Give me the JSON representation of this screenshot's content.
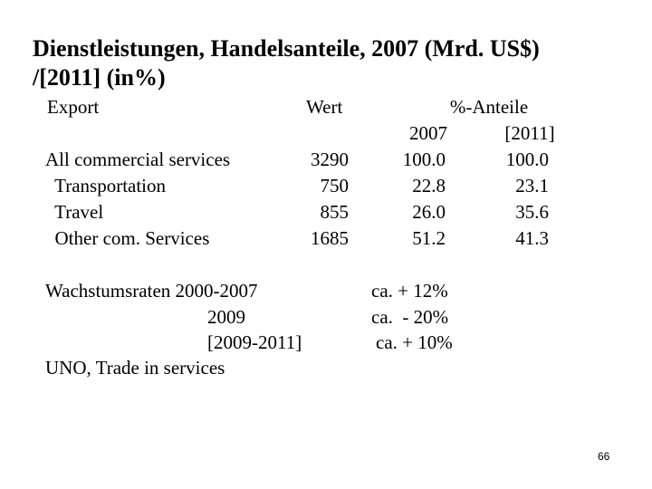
{
  "title": {
    "line1": "Dienstleistungen, Handelsanteile, 2007 (Mrd. US$)",
    "line2": "/[2011] (in%)"
  },
  "table": {
    "headers": {
      "export": "Export",
      "wert": "Wert",
      "anteile": "%-Anteile",
      "year1": "2007",
      "year2": "[2011]"
    },
    "rows": [
      {
        "label": "All commercial services",
        "wert": "3290",
        "share2007": "100.0",
        "share2011": "100.0"
      },
      {
        "label": "  Transportation",
        "wert": "750",
        "share2007": "22.8",
        "share2011": "23.1"
      },
      {
        "label": "  Travel",
        "wert": "855",
        "share2007": "26.0",
        "share2011": "35.6"
      },
      {
        "label": "  Other com. Services",
        "wert": "1685",
        "share2007": "51.2",
        "share2011": "41.3"
      }
    ]
  },
  "growth": {
    "heading": "Wachstumsraten 2000-2007",
    "rows": [
      {
        "period": "2009",
        "value": "ca.  - 20%"
      },
      {
        "period": "[2009-2011]",
        "value": "ca. + 10%"
      }
    ],
    "first_value": "ca. + 12%",
    "source": "UNO, Trade in services"
  },
  "page_number": "66"
}
